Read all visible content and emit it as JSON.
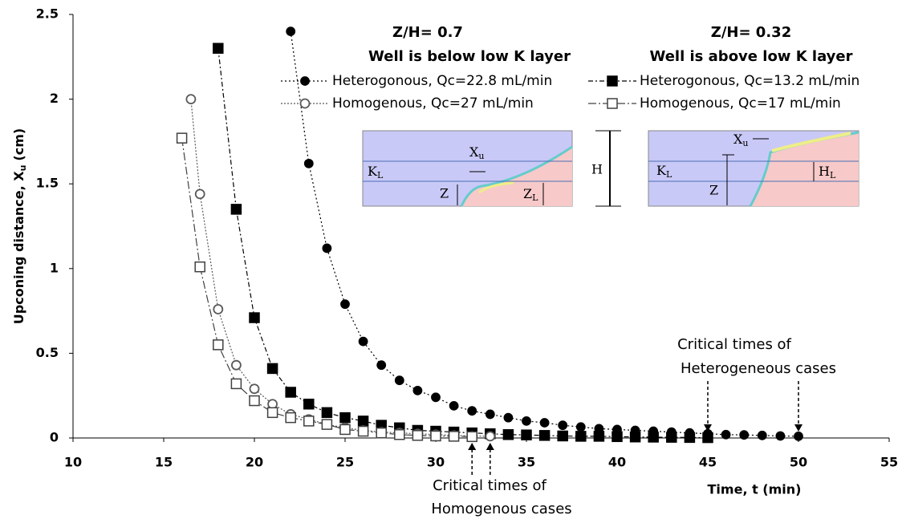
{
  "chart_data": {
    "type": "line",
    "x_label": "Time, t (min)",
    "y_label": [
      "Upconing distance, X",
      "u",
      "(cm)"
    ],
    "xlim": [
      10,
      55
    ],
    "xticks": [
      10,
      15,
      20,
      25,
      30,
      35,
      40,
      45,
      50,
      55
    ],
    "ylim": [
      0,
      2.5
    ],
    "yticks": [
      0,
      0.5,
      1,
      1.5,
      2,
      2.5
    ],
    "series": [
      {
        "name": "Heterogonous, Qc=22.8 mL/min",
        "color": "#000000",
        "marker": "circle",
        "filled": true,
        "dash": "2 3",
        "x": [
          22,
          23,
          24,
          25,
          26,
          27,
          28,
          29,
          30,
          31,
          32,
          33,
          34,
          35,
          36,
          37,
          38,
          39,
          40,
          41,
          42,
          43,
          44,
          45,
          46,
          47,
          48,
          49,
          50
        ],
        "values": [
          2.4,
          1.62,
          1.12,
          0.79,
          0.57,
          0.43,
          0.34,
          0.28,
          0.24,
          0.19,
          0.16,
          0.14,
          0.12,
          0.1,
          0.09,
          0.075,
          0.065,
          0.055,
          0.05,
          0.045,
          0.04,
          0.035,
          0.03,
          0.025,
          0.02,
          0.018,
          0.015,
          0.012,
          0.01
        ]
      },
      {
        "name": "Heterogonous, Qc=13.2 mL/min",
        "color": "#000000",
        "marker": "square",
        "filled": true,
        "dash": "6 3 2 3",
        "x": [
          18,
          19,
          20,
          21,
          22,
          23,
          24,
          25,
          26,
          27,
          28,
          29,
          30,
          31,
          32,
          33,
          34,
          35,
          36,
          37,
          38,
          39,
          40,
          41,
          42,
          43,
          44,
          45
        ],
        "values": [
          2.3,
          1.35,
          0.71,
          0.41,
          0.27,
          0.2,
          0.15,
          0.12,
          0.1,
          0.075,
          0.06,
          0.045,
          0.04,
          0.035,
          0.03,
          0.025,
          0.02,
          0.018,
          0.015,
          0.012,
          0.01,
          0.01,
          0.008,
          0.006,
          0.005,
          0.004,
          0.003,
          0.002
        ]
      },
      {
        "name": "Homogenous, Qc=27 mL/min",
        "color": "#595959",
        "marker": "circle",
        "filled": false,
        "dash": "2 2",
        "x": [
          16.5,
          17,
          18,
          19,
          20,
          21,
          22,
          23,
          24,
          25,
          26,
          27,
          28,
          29,
          30,
          31,
          32,
          33
        ],
        "values": [
          2.0,
          1.44,
          0.76,
          0.43,
          0.29,
          0.2,
          0.14,
          0.11,
          0.08,
          0.06,
          0.045,
          0.035,
          0.03,
          0.025,
          0.02,
          0.015,
          0.012,
          0.01
        ]
      },
      {
        "name": "Homogenous, Qc=17 mL/min",
        "color": "#404040",
        "marker": "square",
        "filled": false,
        "dash": "10 3 2 3",
        "x": [
          16,
          17,
          18,
          19,
          20,
          21,
          22,
          23,
          24,
          25,
          26,
          27,
          28,
          29,
          30,
          31,
          32
        ],
        "values": [
          1.77,
          1.01,
          0.55,
          0.32,
          0.22,
          0.15,
          0.12,
          0.1,
          0.08,
          0.05,
          0.04,
          0.03,
          0.02,
          0.015,
          0.012,
          0.01,
          0.008
        ]
      }
    ],
    "annotations": {
      "left_title": [
        "Z/H= 0.7",
        "Well is below low K layer"
      ],
      "right_title": [
        "Z/H= 0.32",
        "Well is above low K layer"
      ],
      "heterogeneous_note": [
        "Critical times of",
        "Heterogeneous cases"
      ],
      "heterogeneous_times": [
        45,
        50
      ],
      "homogenous_note": [
        "Critical times of",
        "Homogenous cases"
      ],
      "homogenous_times": [
        32,
        33
      ]
    },
    "insets": [
      {
        "xu": [
          "X",
          "u"
        ],
        "kl": [
          "K",
          "L"
        ],
        "z": "Z",
        "zl": [
          "Z",
          "L"
        ],
        "h": "H"
      },
      {
        "xu": [
          "X",
          "u"
        ],
        "kl": [
          "K",
          "L"
        ],
        "z": "Z",
        "hl": [
          "H",
          "L"
        ]
      }
    ]
  }
}
